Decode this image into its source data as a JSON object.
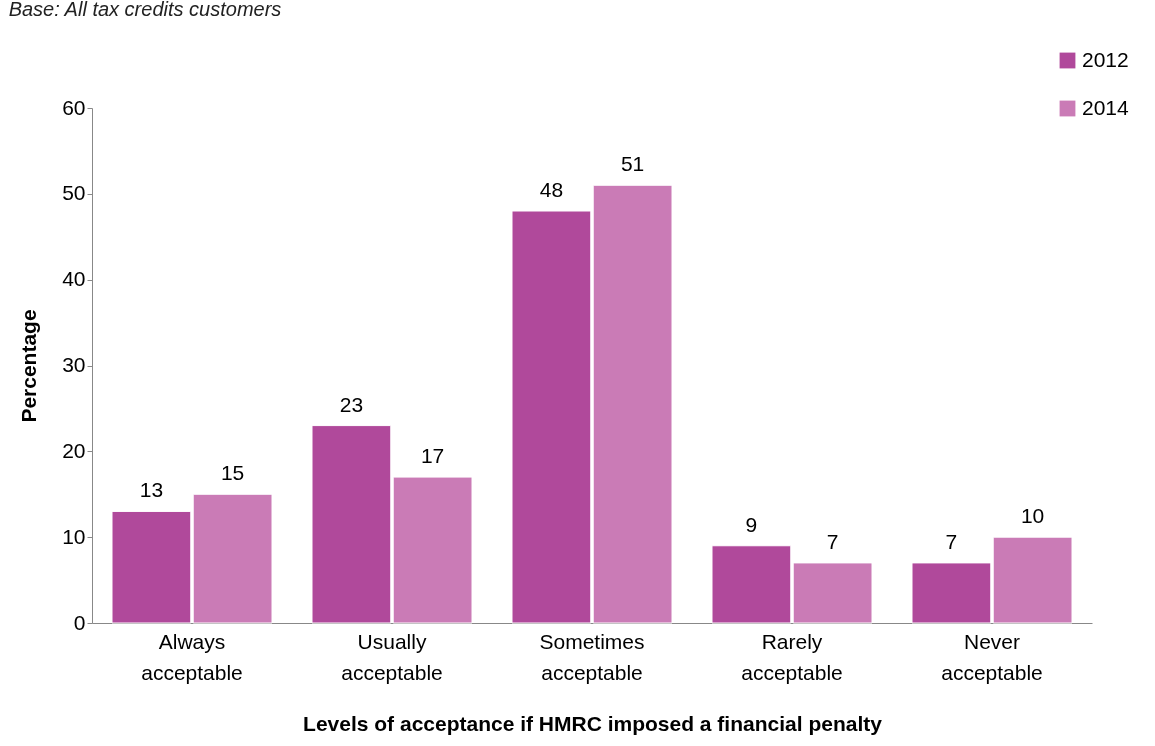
{
  "chart_data": {
    "type": "bar",
    "annotations": [
      "Base: All tax credits customers"
    ],
    "categories": [
      "Always acceptable",
      "Usually acceptable",
      "Sometimes acceptable",
      "Rarely acceptable",
      "Never acceptable"
    ],
    "series": [
      {
        "name": "2012",
        "color": "#b0499b",
        "values": [
          13,
          23,
          48,
          9,
          7
        ]
      },
      {
        "name": "2014",
        "color": "#ca7bb6",
        "values": [
          15,
          17,
          51,
          7,
          10
        ]
      }
    ],
    "xlabel": "Levels of acceptance if HMRC imposed a financial penalty",
    "ylabel": "Percentage",
    "ylim": [
      0,
      60
    ],
    "yticks": [
      0,
      10,
      20,
      30,
      40,
      50,
      60
    ],
    "data_labels": true,
    "legend": "top right",
    "grid": false
  }
}
